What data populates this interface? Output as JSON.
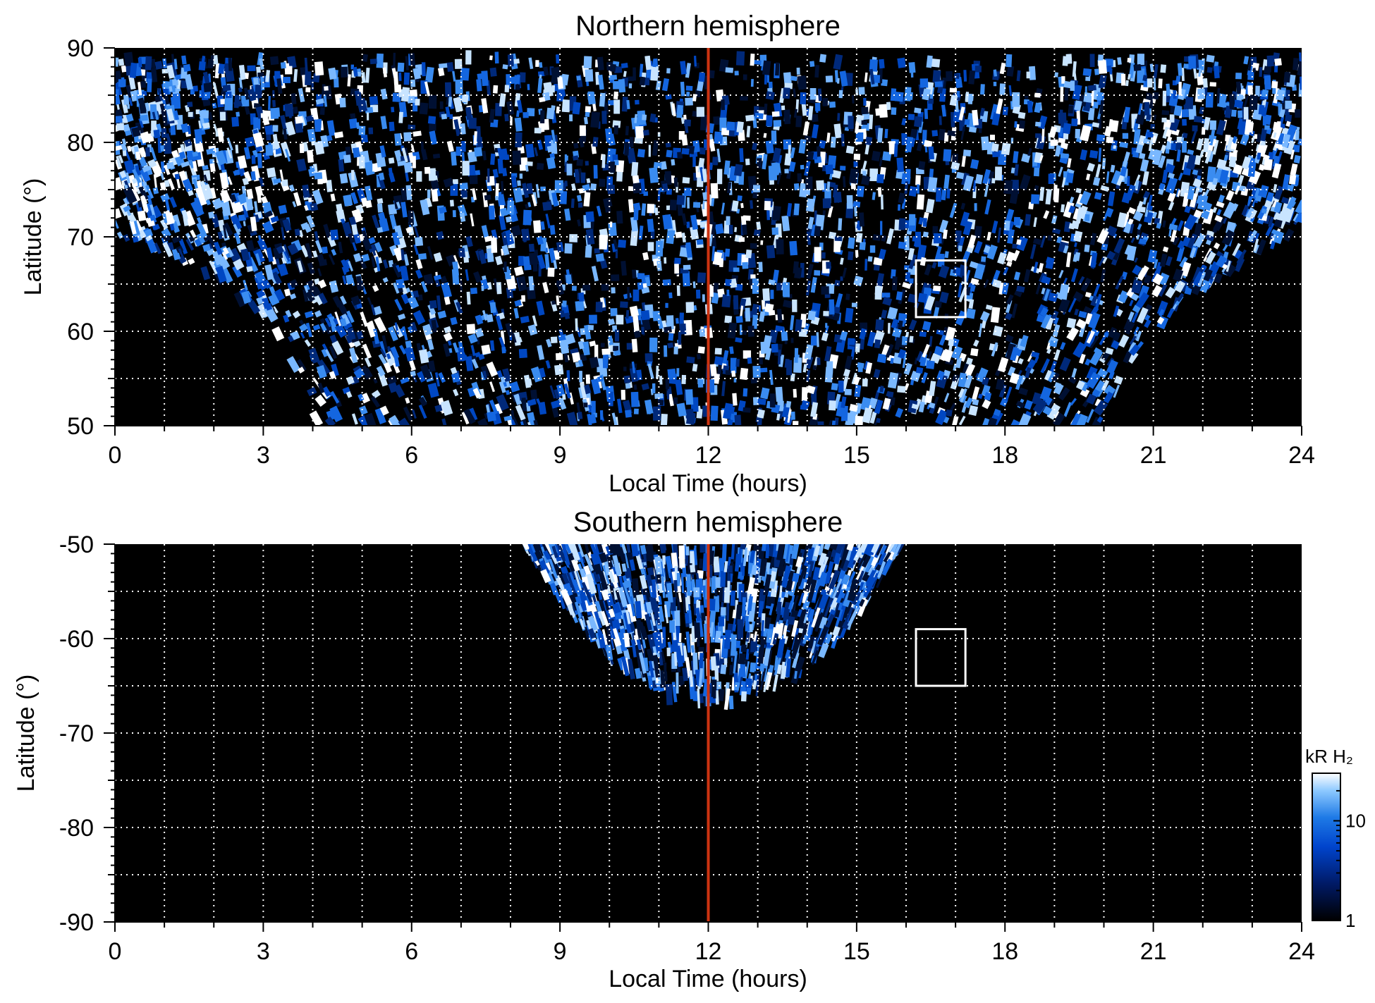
{
  "chart_data": [
    {
      "type": "heatmap",
      "title": "Northern hemisphere",
      "xlabel": "Local Time (hours)",
      "ylabel": "Latitude (°)",
      "xlim": [
        0,
        24
      ],
      "ylim": [
        50,
        90
      ],
      "xticks": [
        "0",
        "3",
        "6",
        "9",
        "12",
        "15",
        "18",
        "21",
        "24"
      ],
      "yticks": [
        "50",
        "60",
        "70",
        "80",
        "90"
      ],
      "grid": true,
      "vertical_line": {
        "x": 12,
        "color": "#cc3311"
      },
      "box": {
        "x": [
          16.2,
          17.2
        ],
        "y": [
          61.5,
          67.5
        ]
      },
      "emission_region_lower_edge": [
        {
          "lt": 0,
          "lat": 70
        },
        {
          "lt": 1,
          "lat": 68.5
        },
        {
          "lt": 2,
          "lat": 65.5
        },
        {
          "lt": 3,
          "lat": 61.5
        },
        {
          "lt": 3.6,
          "lat": 56
        },
        {
          "lt": 4.1,
          "lat": 50
        },
        {
          "lt": 19.9,
          "lat": 50
        },
        {
          "lt": 20.5,
          "lat": 56
        },
        {
          "lt": 21.3,
          "lat": 61.5
        },
        {
          "lt": 22.3,
          "lat": 65.5
        },
        {
          "lt": 23.4,
          "lat": 69
        },
        {
          "lt": 24,
          "lat": 70
        }
      ]
    },
    {
      "type": "heatmap",
      "title": "Southern hemisphere",
      "xlabel": "Local Time (hours)",
      "ylabel": "Latitude (°)",
      "xlim": [
        0,
        24
      ],
      "ylim": [
        -90,
        -50
      ],
      "xticks": [
        "0",
        "3",
        "6",
        "9",
        "12",
        "15",
        "18",
        "21",
        "24"
      ],
      "yticks": [
        "-50",
        "-60",
        "-70",
        "-80",
        "-90"
      ],
      "grid": true,
      "vertical_line": {
        "x": 12,
        "color": "#cc3311"
      },
      "box": {
        "x": [
          16.2,
          17.2
        ],
        "y": [
          -65,
          -59
        ]
      },
      "emission_region_outline": [
        {
          "lt": 8.3,
          "lat": -50
        },
        {
          "lt": 9,
          "lat": -56
        },
        {
          "lt": 10,
          "lat": -62
        },
        {
          "lt": 11.2,
          "lat": -66
        },
        {
          "lt": 12.5,
          "lat": -67
        },
        {
          "lt": 13.8,
          "lat": -64
        },
        {
          "lt": 15,
          "lat": -58
        },
        {
          "lt": 15.9,
          "lat": -50
        }
      ]
    }
  ],
  "colorbar": {
    "title": "kR H₂",
    "ticks": [
      "1",
      "10"
    ],
    "scale": "log",
    "range": [
      1,
      30
    ],
    "colors": [
      "#000000",
      "#001a66",
      "#0044cc",
      "#1e7ae6",
      "#8cc8ff",
      "#ffffff"
    ]
  }
}
